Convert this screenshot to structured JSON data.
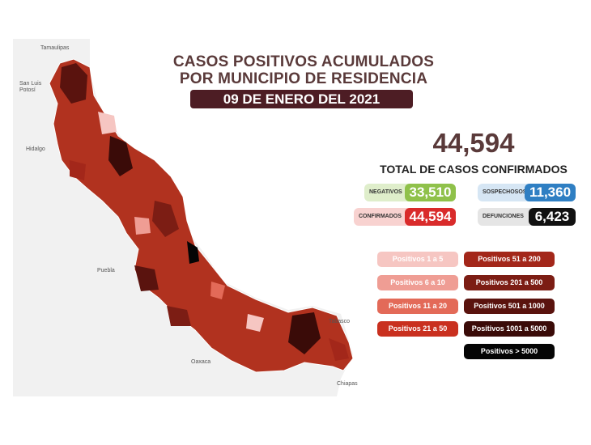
{
  "header": {
    "title_line1": "CASOS POSITIVOS ACUMULADOS",
    "title_line2": "POR MUNICIPIO DE RESIDENCIA",
    "date": "09 DE ENERO DEL 2021"
  },
  "summary": {
    "total": "44,594",
    "total_label": "TOTAL DE CASOS CONFIRMADOS",
    "negativos": {
      "label": "NEGATIVOS",
      "value": "33,510",
      "color": "#8fc14a"
    },
    "sospechosos": {
      "label": "SOSPECHOSOS",
      "value": "11,360",
      "color": "#2f7fc3"
    },
    "confirmados": {
      "label": "CONFIRMADOS",
      "value": "44,594",
      "color": "#d92b2b"
    },
    "defunciones": {
      "label": "DEFUNCIONES",
      "value": "6,423",
      "color": "#111111"
    }
  },
  "legend": [
    {
      "label": "Positivos 1 a 5",
      "color": "#f6c6c2"
    },
    {
      "label": "Positivos 6 a 10",
      "color": "#ef9d94"
    },
    {
      "label": "Positivos 11 a 20",
      "color": "#e36a58"
    },
    {
      "label": "Positivos 21 a 50",
      "color": "#c9301f"
    },
    {
      "label": "Positivos 51 a 200",
      "color": "#a3271a"
    },
    {
      "label": "Positivos 201 a 500",
      "color": "#7c1d14"
    },
    {
      "label": "Positivos 501 a 1000",
      "color": "#5a130e"
    },
    {
      "label": "Positivos 1001 a 5000",
      "color": "#3a0b08"
    },
    {
      "label": "Positivos > 5000",
      "color": "#050505"
    }
  ],
  "map_labels": {
    "tamaulipas": "Tamaulipas",
    "san_luis": "San Luis Potosí",
    "hidalgo": "Hidalgo",
    "puebla": "Puebla",
    "oaxaca": "Oaxaca",
    "tabasco": "Tabasco",
    "chiapas": "Chiapas"
  }
}
